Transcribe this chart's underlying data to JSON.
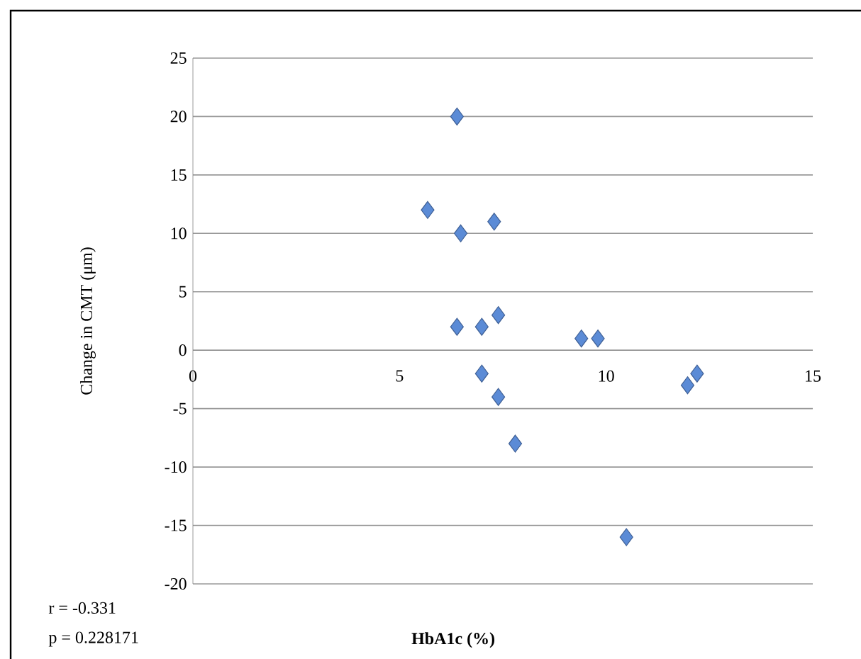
{
  "chart_data": {
    "type": "scatter",
    "xlabel": "HbA1c (%)",
    "ylabel": "Change in CMT (μm)",
    "x": [
      6.39,
      5.68,
      6.48,
      7.29,
      6.39,
      6.99,
      7.39,
      9.4,
      9.8,
      6.99,
      7.39,
      7.8,
      10.49,
      11.97,
      12.2
    ],
    "values": [
      20,
      12,
      10,
      11,
      2,
      2,
      3,
      1,
      1,
      -2,
      -4,
      -8,
      -16,
      -3,
      -2
    ],
    "color": "#5b8bd6",
    "marker": "diamond",
    "xlim": [
      0,
      15
    ],
    "xticks": [
      0,
      5,
      10,
      15
    ],
    "ylim": [
      -20,
      25
    ],
    "yticks": [
      -20,
      -15,
      -10,
      -5,
      0,
      5,
      10,
      15,
      20,
      25
    ],
    "grid": "y",
    "annotations": [
      "r = -0.331",
      "p = 0.228171"
    ]
  }
}
